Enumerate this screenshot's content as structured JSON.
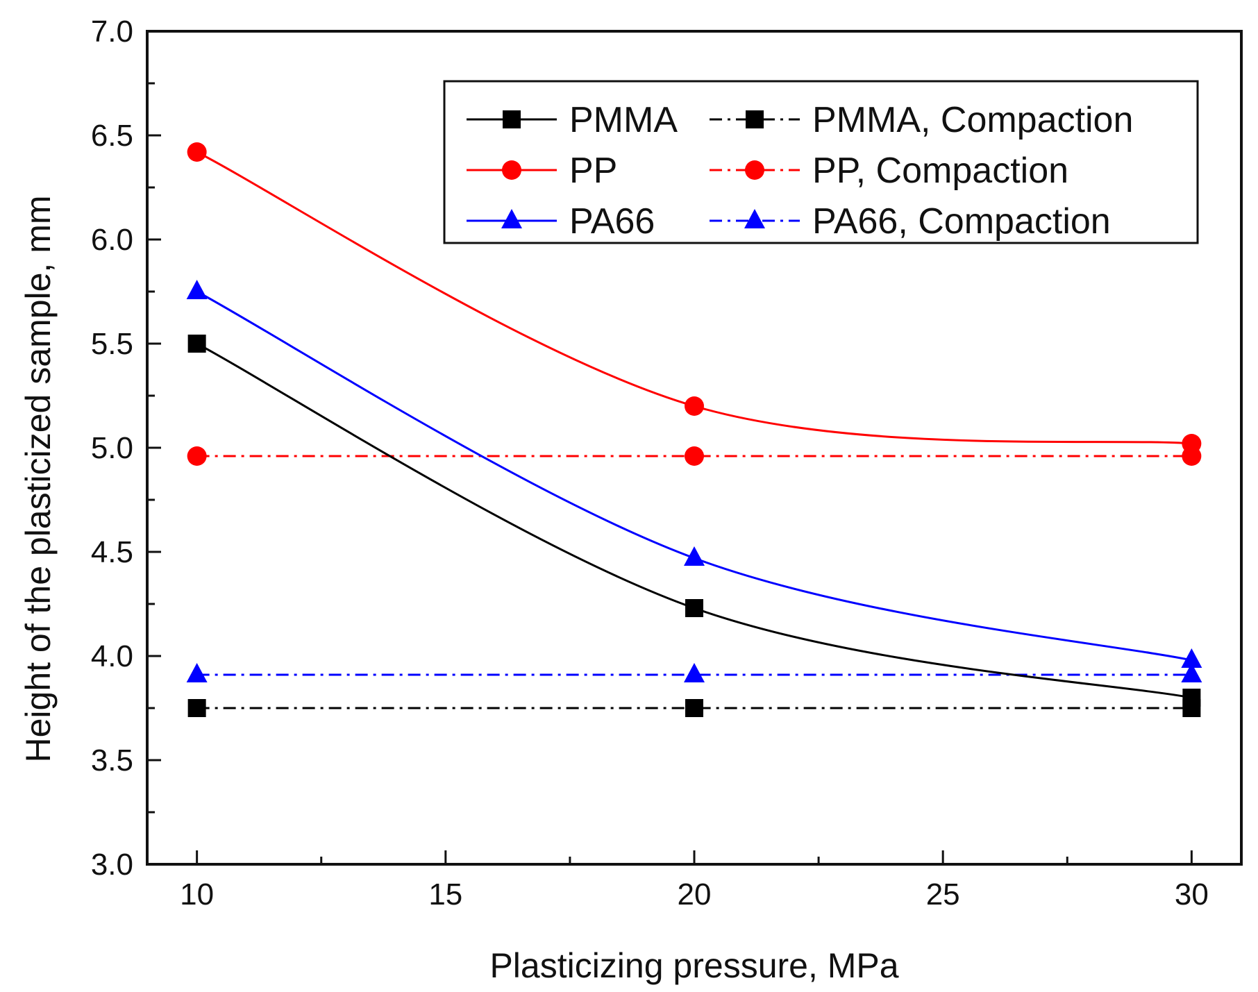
{
  "chart_data": {
    "type": "line",
    "title": "",
    "xlabel": "Plasticizing pressure, MPa",
    "ylabel": "Height of the plasticized sample, mm",
    "xlim": [
      9,
      31
    ],
    "ylim": [
      3.0,
      7.0
    ],
    "x_ticks": [
      10,
      15,
      20,
      25,
      30
    ],
    "x_tick_labels": [
      "10",
      "15",
      "20",
      "25",
      "30"
    ],
    "y_ticks": [
      3.0,
      3.5,
      4.0,
      4.5,
      5.0,
      5.5,
      6.0,
      6.5,
      7.0
    ],
    "y_tick_labels": [
      "3.0",
      "3.5",
      "4.0",
      "4.5",
      "5.0",
      "5.5",
      "6.0",
      "6.5",
      "7.0"
    ],
    "grid": false,
    "legend_position": "top-right",
    "x": [
      10,
      20,
      30
    ],
    "series": [
      {
        "name": "PMMA",
        "values": [
          5.5,
          4.23,
          3.8
        ],
        "color": "#000000",
        "marker": "square",
        "line_style": "solid",
        "smooth": true
      },
      {
        "name": "PP",
        "values": [
          6.42,
          5.2,
          5.02
        ],
        "color": "#ff0000",
        "marker": "circle",
        "line_style": "solid",
        "smooth": true
      },
      {
        "name": "PA66",
        "values": [
          5.75,
          4.47,
          3.98
        ],
        "color": "#0000ff",
        "marker": "triangle",
        "line_style": "solid",
        "smooth": true
      },
      {
        "name": "PMMA, Compaction",
        "values": [
          3.75,
          3.75,
          3.75
        ],
        "color": "#000000",
        "marker": "square",
        "line_style": "dashdot",
        "smooth": false
      },
      {
        "name": "PP, Compaction",
        "values": [
          4.96,
          4.96,
          4.96
        ],
        "color": "#ff0000",
        "marker": "circle",
        "line_style": "dashdot",
        "smooth": false
      },
      {
        "name": "PA66, Compaction",
        "values": [
          3.91,
          3.91,
          3.91
        ],
        "color": "#0000ff",
        "marker": "triangle",
        "line_style": "dashdot",
        "smooth": false
      }
    ]
  }
}
